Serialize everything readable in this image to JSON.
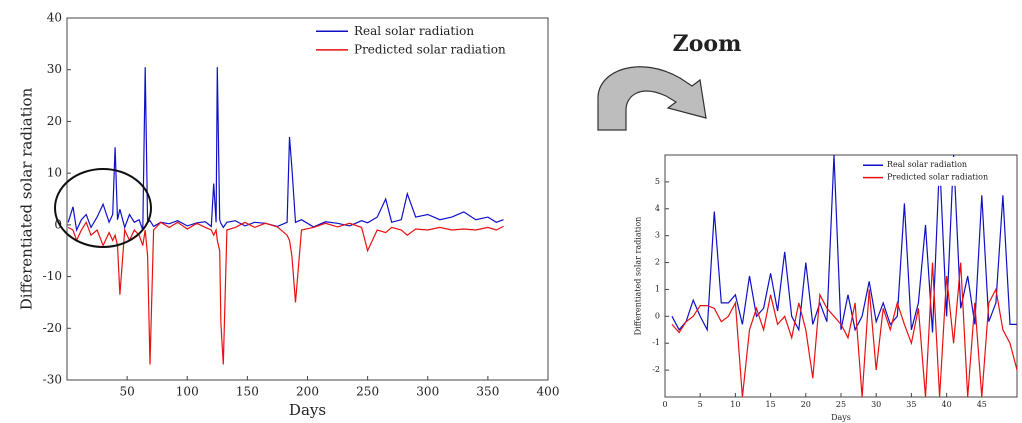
{
  "annotation": "Zoom",
  "chart_data": [
    {
      "type": "line",
      "xlabel": "Days",
      "ylabel": "Differentiated solar radiation",
      "xlim": [
        0,
        400
      ],
      "xticks": [
        50,
        100,
        150,
        200,
        250,
        300,
        350,
        400
      ],
      "ylim": [
        -30,
        40
      ],
      "yticks": [
        -30,
        -20,
        -10,
        0,
        10,
        20,
        30,
        40
      ],
      "legend": "upper right",
      "x": [
        1,
        5,
        8,
        12,
        16,
        20,
        25,
        30,
        35,
        38,
        40,
        42,
        44,
        48,
        52,
        56,
        60,
        63,
        65,
        67,
        69,
        72,
        78,
        85,
        92,
        100,
        108,
        115,
        120,
        122,
        124,
        125,
        127,
        128,
        130,
        133,
        140,
        148,
        156,
        165,
        175,
        183,
        185,
        187,
        190,
        195,
        205,
        215,
        225,
        235,
        245,
        250,
        258,
        265,
        270,
        278,
        283,
        290,
        300,
        310,
        320,
        330,
        340,
        350,
        357,
        363
      ],
      "series": [
        {
          "name": "Real solar radiation",
          "color": "#1010c8",
          "values": [
            0.5,
            3.5,
            -1,
            1,
            2,
            -0.5,
            1.5,
            4,
            0.5,
            2,
            15,
            1,
            3,
            -0.5,
            2,
            0.5,
            1,
            -1,
            30.5,
            0.5,
            0.8,
            -0.3,
            0.5,
            0.2,
            0.8,
            -0.2,
            0.4,
            0.6,
            -0.3,
            8,
            0.5,
            30.5,
            1,
            0.3,
            -0.5,
            0.5,
            0.8,
            -0.2,
            0.5,
            0.3,
            -0.3,
            0.5,
            17,
            11,
            0.5,
            1,
            -0.4,
            0.6,
            0.3,
            -0.2,
            0.8,
            0.4,
            1.5,
            5,
            0.5,
            1,
            6,
            1.5,
            2,
            1,
            1.5,
            2.5,
            1,
            1.5,
            0.5,
            1
          ]
        },
        {
          "name": "Predicted solar radiation",
          "color": "#e81010",
          "values": [
            -0.5,
            -1,
            -3,
            -1,
            0.5,
            -2,
            -1,
            -4,
            -1.5,
            -3,
            -2,
            -4,
            -13.5,
            -1,
            -3,
            -1,
            -2,
            -4,
            -1,
            -6,
            -27,
            -1,
            0.5,
            -0.5,
            0.5,
            -0.8,
            0.3,
            -0.5,
            -1,
            -2,
            -1,
            -3,
            -5,
            -19,
            -27,
            -1,
            -0.5,
            0.5,
            -0.5,
            0.3,
            -0.4,
            -2,
            -3,
            -6,
            -15,
            -1,
            -0.5,
            0.3,
            -0.4,
            0.3,
            -0.5,
            -5,
            -1,
            -1.5,
            -0.5,
            -1,
            -2,
            -0.8,
            -1,
            -0.5,
            -1,
            -0.8,
            -1,
            -0.5,
            -1,
            -0.3
          ]
        }
      ]
    },
    {
      "type": "line",
      "xlabel": "Days",
      "ylabel": "Differentiated solar radiation",
      "xlim": [
        0,
        50
      ],
      "xticks": [
        0,
        5,
        10,
        15,
        20,
        25,
        30,
        35,
        40,
        45
      ],
      "ylim": [
        -3,
        6
      ],
      "yticks": [
        -2,
        -1,
        0,
        1,
        2,
        3,
        4,
        5
      ],
      "legend": "upper right",
      "x": [
        1,
        2,
        3,
        4,
        5,
        6,
        7,
        8,
        9,
        10,
        11,
        12,
        13,
        14,
        15,
        16,
        17,
        18,
        19,
        20,
        21,
        22,
        23,
        24,
        25,
        26,
        27,
        28,
        29,
        30,
        31,
        32,
        33,
        34,
        35,
        36,
        37,
        38,
        39,
        40,
        41,
        42,
        43,
        44,
        45,
        46,
        47,
        48,
        49,
        50
      ],
      "series": [
        {
          "name": "Real solar radiation",
          "color": "#1010c8",
          "values": [
            0,
            -0.5,
            -0.2,
            0.6,
            0,
            -0.5,
            3.9,
            0.5,
            0.5,
            0.8,
            -0.3,
            1.5,
            0,
            0.3,
            1.6,
            0.2,
            2.4,
            0,
            -0.5,
            2,
            -0.3,
            0.5,
            -0.2,
            6,
            -0.5,
            0.8,
            -0.5,
            0,
            1.3,
            -0.2,
            0.5,
            -0.3,
            0,
            4.2,
            -0.5,
            0.5,
            3.4,
            -0.6,
            5.8,
            0,
            6,
            0.3,
            1.5,
            -0.3,
            4.5,
            -0.2,
            0.5,
            4.5,
            -0.3,
            -0.3
          ]
        },
        {
          "name": "Predicted solar radiation",
          "color": "#e81010",
          "values": [
            -0.3,
            -0.6,
            -0.2,
            0,
            0.4,
            0.4,
            0.3,
            -0.2,
            0,
            0.5,
            -3,
            -0.5,
            0.3,
            -0.5,
            0.8,
            -0.3,
            0,
            -0.8,
            0.5,
            -0.5,
            -2.3,
            0.8,
            0.3,
            0,
            -0.3,
            -0.8,
            0.5,
            -3,
            1,
            -2,
            0.3,
            -0.5,
            0.5,
            -0.3,
            -1,
            0.3,
            -3,
            2,
            -3,
            1.5,
            -1,
            2,
            -3,
            0.5,
            -3,
            0.5,
            1,
            -0.5,
            -1,
            -2
          ]
        }
      ]
    }
  ]
}
